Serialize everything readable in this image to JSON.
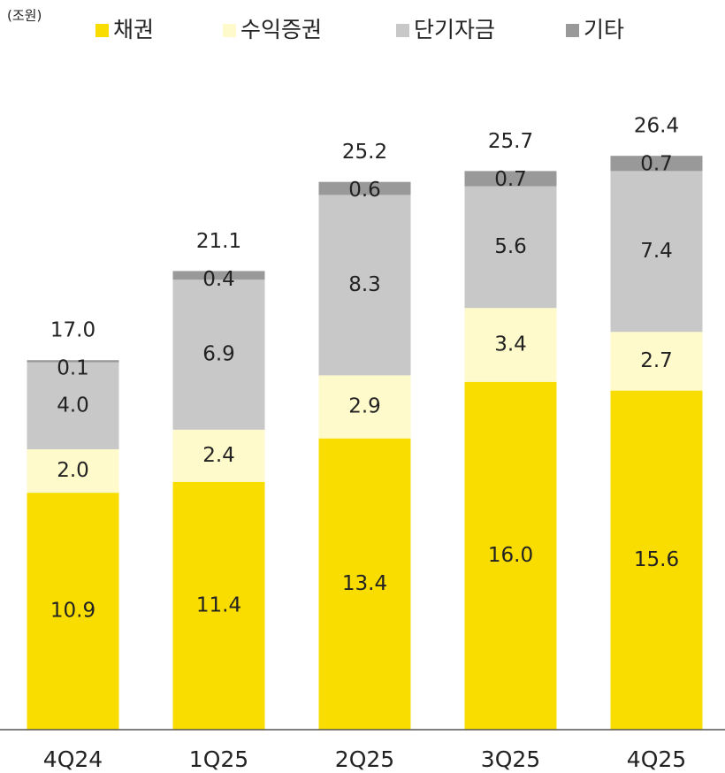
{
  "chart_data": {
    "type": "stacked-bar",
    "unit_label": "(조원)",
    "categories": [
      "4Q24",
      "1Q25",
      "2Q25",
      "3Q25",
      "4Q25"
    ],
    "series": [
      {
        "name": "채권",
        "color": "#f9dd00",
        "values": [
          10.9,
          11.4,
          13.4,
          16.0,
          15.6
        ],
        "value_labels": [
          "10.9",
          "11.4",
          "13.4",
          "16.0",
          "15.6"
        ]
      },
      {
        "name": "수익증권",
        "color": "#fffacc",
        "values": [
          2.0,
          2.4,
          2.9,
          3.4,
          2.7
        ],
        "value_labels": [
          "2.0",
          "2.4",
          "2.9",
          "3.4",
          "2.7"
        ]
      },
      {
        "name": "단기자금",
        "color": "#c8c8c8",
        "values": [
          4.0,
          6.9,
          8.3,
          5.6,
          7.4
        ],
        "value_labels": [
          "4.0",
          "6.9",
          "8.3",
          "5.6",
          "7.4"
        ]
      },
      {
        "name": "기타",
        "color": "#999999",
        "values": [
          0.1,
          0.4,
          0.6,
          0.7,
          0.7
        ],
        "value_labels": [
          "0.1",
          "0.4",
          "0.6",
          "0.7",
          "0.7"
        ]
      }
    ],
    "totals": {
      "values": [
        17.0,
        21.1,
        25.2,
        25.7,
        26.4
      ],
      "value_labels": [
        "17.0",
        "21.1",
        "25.2",
        "25.7",
        "26.4"
      ]
    },
    "ylim": [
      0,
      29.5
    ]
  }
}
